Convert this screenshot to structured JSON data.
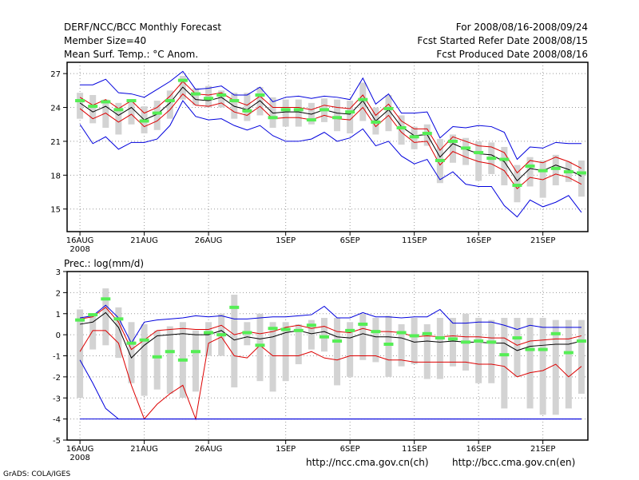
{
  "header": {
    "title": "DERF/NCC/BCC Monthly Forecast",
    "member_size": "Member Size=40",
    "variable": "Mean Surf. Temp.: °C Anom.",
    "period": "For 2008/08/16-2008/09/24",
    "started": "Fcst Started Refer Date 2008/08/15",
    "produced": "Fcst Produced Date 2008/08/16"
  },
  "footer": {
    "link_ncc": "http://ncc.cma.gov.cn(ch)",
    "link_bcc": "http://bcc.cma.gov.cn(en)",
    "grads": "GrADS: COLA/IGES"
  },
  "colors": {
    "spread": "#d3d3d3",
    "mean": "#000000",
    "member": "#55ee55",
    "inner": "#dd0000",
    "outer": "#0000dd"
  },
  "chart_data": [
    {
      "type": "line",
      "name": "temperature",
      "title": "",
      "xlabel": "",
      "ylabel": "",
      "x": [
        1,
        2,
        3,
        4,
        5,
        6,
        7,
        8,
        9,
        10,
        11,
        12,
        13,
        14,
        15,
        16,
        17,
        18,
        19,
        20,
        21,
        22,
        23,
        24,
        25,
        26,
        27,
        28,
        29,
        30,
        31,
        32,
        33,
        34,
        35,
        36,
        37,
        38,
        39,
        40
      ],
      "xlim": [
        0,
        40.5
      ],
      "ylim": [
        13,
        28
      ],
      "yticks": [
        15,
        18,
        21,
        24,
        27
      ],
      "xticks": [
        {
          "x": 1,
          "label": "16AUG",
          "sublabel": "2008"
        },
        {
          "x": 6,
          "label": "21AUG"
        },
        {
          "x": 11,
          "label": "26AUG"
        },
        {
          "x": 17,
          "label": "1SEP"
        },
        {
          "x": 22,
          "label": "6SEP"
        },
        {
          "x": 27,
          "label": "11SEP"
        },
        {
          "x": 32,
          "label": "16SEP"
        },
        {
          "x": 37,
          "label": "21SEP"
        }
      ],
      "grid": true,
      "series": [
        {
          "name": "ensemble mean",
          "values": [
            24.4,
            23.6,
            24.1,
            23.3,
            24,
            22.9,
            23.4,
            24.4,
            25.8,
            24.7,
            24.6,
            24.9,
            24.1,
            23.8,
            24.6,
            23.5,
            23.6,
            23.6,
            23.4,
            23.8,
            23.5,
            23.4,
            24.6,
            22.8,
            23.8,
            22.3,
            21.5,
            21.6,
            19.6,
            20.8,
            20.3,
            19.9,
            19.8,
            19.2,
            17.5,
            18.6,
            18.4,
            18.9,
            18.5,
            17.9
          ]
        },
        {
          "name": "upper inner",
          "values": [
            24.9,
            24.2,
            24.7,
            23.9,
            24.6,
            23.5,
            24,
            25,
            26.3,
            25.2,
            25.1,
            25.3,
            24.6,
            24.2,
            25,
            24,
            24,
            24,
            23.8,
            24.2,
            24,
            23.9,
            25.1,
            23.3,
            24.3,
            22.8,
            22.1,
            22.1,
            20.2,
            21.4,
            21,
            20.6,
            20.5,
            20,
            18.2,
            19.3,
            19.1,
            19.6,
            19.2,
            18.6
          ]
        },
        {
          "name": "lower inner",
          "values": [
            23.9,
            23,
            23.5,
            22.7,
            23.4,
            22.3,
            22.8,
            23.8,
            25.2,
            24.2,
            24.1,
            24.4,
            23.6,
            23.3,
            24.1,
            23,
            23.1,
            23.1,
            22.9,
            23.3,
            23,
            22.9,
            24,
            22.3,
            23.3,
            21.8,
            20.9,
            21,
            18.9,
            20.1,
            19.6,
            19.2,
            19,
            18.4,
            16.8,
            17.8,
            17.6,
            18.1,
            17.8,
            17.2
          ]
        },
        {
          "name": "upper outer",
          "values": [
            26,
            26,
            26.5,
            25.3,
            25.2,
            24.9,
            25.6,
            26.3,
            27.2,
            25.6,
            25.7,
            25.9,
            25.1,
            25.1,
            25.8,
            24.5,
            24.9,
            25,
            24.8,
            25,
            24.9,
            24.7,
            26.6,
            24.3,
            25.2,
            23.5,
            23.5,
            23.6,
            21.3,
            22.3,
            22.2,
            22.4,
            22.3,
            21.8,
            19.4,
            20.5,
            20.4,
            20.9,
            20.8,
            20.8
          ]
        },
        {
          "name": "lower outer",
          "values": [
            22.5,
            20.8,
            21.4,
            20.3,
            20.9,
            20.9,
            21.2,
            22.4,
            24.6,
            23.2,
            22.9,
            23,
            22.4,
            22,
            22.4,
            21.5,
            21,
            21,
            21.2,
            21.8,
            21,
            21.3,
            22.1,
            20.6,
            21,
            19.7,
            19,
            19.4,
            17.6,
            18.3,
            17.2,
            17,
            17,
            15.3,
            14.3,
            15.8,
            15.2,
            15.6,
            16.2,
            14.7
          ]
        }
      ],
      "members": [
        24.6,
        24.1,
        24.5,
        23.8,
        24.6,
        22.8,
        23.5,
        24.6,
        26.4,
        25.2,
        24.8,
        25.1,
        24.6,
        23.7,
        25.1,
        23.1,
        23.8,
        23.8,
        22.9,
        23.8,
        23.1,
        23.6,
        24.7,
        22.7,
        23.9,
        22.2,
        21.4,
        21.7,
        19.3,
        21,
        20.4,
        20,
        19.5,
        19.4,
        17.1,
        18.8,
        18.4,
        18.6,
        18.3,
        18.2
      ],
      "spread_low": [
        23,
        22.6,
        22.2,
        21.6,
        22.5,
        21.7,
        22,
        23,
        24.7,
        24.2,
        24,
        24,
        23,
        22.8,
        23.3,
        22.2,
        22.3,
        22.3,
        22.5,
        22.7,
        21.9,
        21.7,
        22.8,
        21.6,
        21.9,
        20.7,
        20.3,
        20.6,
        17.3,
        19.1,
        18.9,
        17.5,
        18.1,
        17.1,
        15.6,
        17,
        16,
        17.1,
        17.4,
        16.1
      ],
      "spread_high": [
        25.3,
        25.1,
        24.7,
        24.4,
        24.6,
        24.1,
        24.6,
        25.5,
        26.8,
        25.7,
        25.9,
        25.5,
        25.3,
        25.3,
        25.8,
        24.9,
        24.7,
        24.7,
        24.4,
        24.8,
        24.7,
        24.6,
        26.2,
        24,
        25.1,
        23.3,
        22.3,
        22.5,
        21.2,
        21.6,
        21.3,
        21,
        20.9,
        20.5,
        18.9,
        19.6,
        19.3,
        19.8,
        19.2,
        19.3
      ]
    },
    {
      "type": "line",
      "name": "precipitation",
      "title": "Prec.: log(mm/d)",
      "xlabel": "",
      "ylabel": "",
      "x": [
        1,
        2,
        3,
        4,
        5,
        6,
        7,
        8,
        9,
        10,
        11,
        12,
        13,
        14,
        15,
        16,
        17,
        18,
        19,
        20,
        21,
        22,
        23,
        24,
        25,
        26,
        27,
        28,
        29,
        30,
        31,
        32,
        33,
        34,
        35,
        36,
        37,
        38,
        39,
        40
      ],
      "xlim": [
        0,
        40.5
      ],
      "ylim": [
        -5,
        3
      ],
      "yticks": [
        -5,
        -4,
        -3,
        -2,
        -1,
        0,
        1,
        2,
        3
      ],
      "xticks": [
        {
          "x": 1,
          "label": "16AUG",
          "sublabel": "2008"
        },
        {
          "x": 6,
          "label": "21AUG"
        },
        {
          "x": 11,
          "label": "26AUG"
        },
        {
          "x": 17,
          "label": "1SEP"
        },
        {
          "x": 22,
          "label": "6SEP"
        },
        {
          "x": 27,
          "label": "11SEP"
        },
        {
          "x": 32,
          "label": "16SEP"
        },
        {
          "x": 37,
          "label": "21SEP"
        }
      ],
      "grid": true,
      "series": [
        {
          "name": "ensemble mean",
          "values": [
            0.5,
            0.6,
            1.05,
            0.35,
            -1.1,
            -0.5,
            -0.05,
            0.0,
            0.05,
            0.0,
            0.0,
            0.2,
            -0.25,
            -0.1,
            -0.2,
            -0.1,
            0.1,
            0.2,
            0.05,
            0.15,
            -0.1,
            -0.15,
            0.05,
            -0.1,
            -0.1,
            -0.15,
            -0.35,
            -0.3,
            -0.35,
            -0.3,
            -0.35,
            -0.35,
            -0.4,
            -0.4,
            -0.75,
            -0.55,
            -0.5,
            -0.45,
            -0.45,
            -0.3
          ]
        },
        {
          "name": "upper inner",
          "values": [
            0.75,
            0.85,
            1.3,
            0.6,
            -0.7,
            -0.25,
            0.2,
            0.25,
            0.3,
            0.25,
            0.25,
            0.45,
            0.0,
            0.15,
            0.05,
            0.15,
            0.35,
            0.45,
            0.3,
            0.4,
            0.15,
            0.1,
            0.3,
            0.15,
            0.15,
            0.1,
            -0.1,
            -0.05,
            -0.1,
            -0.05,
            -0.1,
            -0.1,
            -0.15,
            -0.15,
            -0.5,
            -0.3,
            -0.25,
            -0.2,
            -0.2,
            -0.05
          ]
        },
        {
          "name": "lower inner",
          "values": [
            -0.8,
            0.2,
            0.2,
            -0.4,
            -2.4,
            -4.0,
            -3.3,
            -2.8,
            -2.4,
            -4.0,
            -0.4,
            -0.1,
            -1.0,
            -1.1,
            -0.5,
            -1.0,
            -1.0,
            -1.0,
            -0.8,
            -1.1,
            -1.2,
            -1.0,
            -1.0,
            -1.0,
            -1.2,
            -1.2,
            -1.3,
            -1.3,
            -1.3,
            -1.3,
            -1.3,
            -1.4,
            -1.4,
            -1.5,
            -2.0,
            -1.8,
            -1.7,
            -1.4,
            -2.0,
            -1.5
          ]
        },
        {
          "name": "upper outer",
          "values": [
            0.8,
            0.9,
            1.4,
            0.8,
            -0.4,
            0.6,
            0.7,
            0.75,
            0.8,
            0.9,
            0.85,
            0.9,
            0.75,
            0.75,
            0.8,
            0.85,
            0.85,
            0.9,
            0.95,
            1.35,
            0.8,
            0.8,
            1.05,
            0.85,
            0.85,
            0.8,
            0.85,
            0.85,
            1.2,
            0.55,
            0.55,
            0.6,
            0.6,
            0.45,
            0.25,
            0.45,
            0.35,
            0.35,
            0.35,
            0.35
          ]
        },
        {
          "name": "lower outer",
          "values": [
            -1.2,
            -2.3,
            -3.5,
            -4.0,
            -4.0,
            -4.0,
            -4.0,
            -4.0,
            -4.0,
            -4.0,
            -4.0,
            -4.0,
            -4.0,
            -4.0,
            -4.0,
            -4.0,
            -4.0,
            -4.0,
            -4.0,
            -4.0,
            -4.0,
            -4.0,
            -4.0,
            -4.0,
            -4.0,
            -4.0,
            -4.0,
            -4.0,
            -4.0,
            -4.0,
            -4.0,
            -4.0,
            -4.0,
            -4.0,
            -4.0,
            -4.0,
            -4.0,
            -4.0,
            -4.0,
            -4.0
          ]
        },
        {
          "name": "floor",
          "values": [
            -4.0,
            -4.0,
            -4.0,
            -4.0,
            -4.0,
            -4.0,
            -4.0,
            -4.0,
            -4.0,
            -4.0,
            -4.0,
            -4.0,
            -4.0,
            -4.0,
            -4.0,
            -4.0,
            -4.0,
            -4.0,
            -4.0,
            -4.0,
            -4.0,
            -4.0,
            -4.0,
            -4.0,
            -4.0,
            -4.0,
            -4.0,
            -4.0,
            -4.0,
            -4.0,
            -4.0,
            -4.0,
            -4.0,
            -4.0,
            -4.0,
            -4.0,
            -4.0,
            -4.0,
            -4.0,
            -4.0
          ]
        }
      ],
      "members": [
        0.7,
        0.95,
        1.7,
        0.75,
        -0.4,
        -0.25,
        -1.05,
        -0.8,
        -1.2,
        -0.8,
        0.1,
        0.0,
        1.3,
        0.1,
        -0.5,
        0.3,
        0.25,
        0.2,
        0.45,
        -0.1,
        -0.3,
        0.2,
        0.5,
        0.15,
        -0.45,
        0.1,
        -0.05,
        0.05,
        -0.15,
        -0.2,
        -0.35,
        -0.3,
        -0.35,
        -0.95,
        -0.15,
        -0.7,
        -0.7,
        0.05,
        -0.85,
        -0.3
      ],
      "spread_low": [
        -3.0,
        -0.7,
        -0.5,
        -1.1,
        -2.3,
        -2.9,
        -2.6,
        -2.8,
        -3.0,
        -2.7,
        -1.0,
        -1.0,
        -2.5,
        -0.5,
        -2.2,
        -2.7,
        -2.2,
        -1.4,
        -0.7,
        -0.8,
        -2.4,
        -2.0,
        -1.2,
        -1.3,
        -2.0,
        -1.5,
        -1.4,
        -2.1,
        -2.1,
        -1.5,
        -1.7,
        -2.3,
        -2.3,
        -3.5,
        -2.0,
        -3.5,
        -3.8,
        -3.8,
        -3.5,
        -2.8
      ],
      "spread_high": [
        1.2,
        1.0,
        2.2,
        1.3,
        0.6,
        0.5,
        0.2,
        0.4,
        0.6,
        0.2,
        0.6,
        1.0,
        1.9,
        0.6,
        1.0,
        0.6,
        0.6,
        0.5,
        0.7,
        0.8,
        0.8,
        0.6,
        1.0,
        0.8,
        0.9,
        0.5,
        0.8,
        0.5,
        0.8,
        0.8,
        1.0,
        0.8,
        0.7,
        0.8,
        0.8,
        0.8,
        0.8,
        0.7,
        0.7,
        0.7
      ]
    }
  ]
}
